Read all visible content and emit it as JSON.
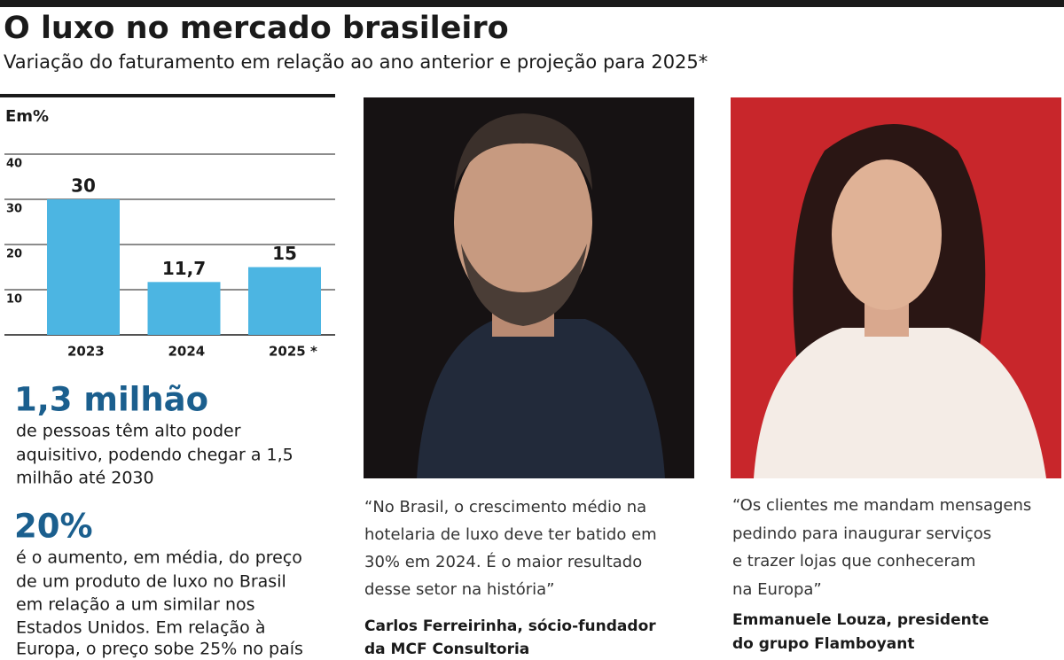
{
  "header": {
    "title": "O luxo no mercado brasileiro",
    "subtitle": "Variação do faturamento em relação ao ano anterior e projeção para 2025*"
  },
  "chart_data": {
    "type": "bar",
    "unit_label": "Em%",
    "categories": [
      "2023",
      "2024",
      "2025 *"
    ],
    "values": [
      30,
      11.7,
      15
    ],
    "value_labels": [
      "30",
      "11,7",
      "15"
    ],
    "color": "#4cb5e2",
    "ylim": [
      0,
      40
    ],
    "yticks": [
      10,
      20,
      30,
      40
    ],
    "grid": true
  },
  "stats": [
    {
      "value": "1,3 milhão",
      "lines": [
        "de pessoas têm alto poder",
        "aquisitivo, podendo chegar a 1,5",
        "milhão até 2030"
      ]
    },
    {
      "value": "20%",
      "lines": [
        "é o aumento, em média, do preço",
        "de um produto de luxo no Brasil",
        "em relação a um similar nos",
        "Estados Unidos. Em relação à",
        "Europa, o preço sobe 25% no país"
      ]
    }
  ],
  "quotes": [
    {
      "lines": [
        "“No Brasil, o crescimento médio na",
        "hotelaria de luxo deve ter batido em",
        "30% em 2024. É o maior resultado",
        "desse setor na história”"
      ],
      "author": [
        "Carlos Ferreirinha, sócio-fundador",
        "da MCF Consultoria"
      ]
    },
    {
      "lines": [
        "“Os clientes me mandam mensagens",
        "pedindo para inaugurar serviços",
        "e trazer lojas que conheceram",
        "na Europa”"
      ],
      "author": [
        "Emmanuele Louza, presidente",
        "do grupo Flamboyant"
      ]
    }
  ]
}
